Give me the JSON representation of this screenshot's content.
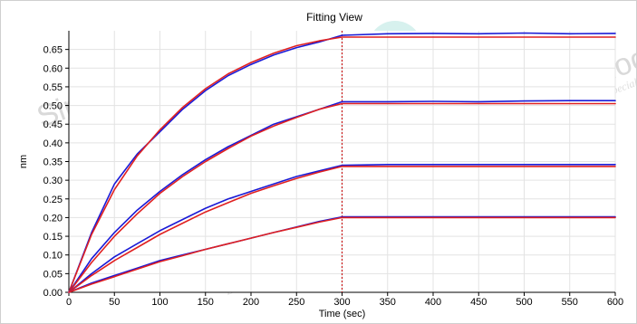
{
  "chart_data": {
    "type": "line",
    "title": "Fitting View",
    "xlabel": "Time (sec)",
    "ylabel": "nm",
    "xlim": [
      0,
      600
    ],
    "ylim": [
      0,
      0.7
    ],
    "x_ticks": [
      0,
      50,
      100,
      150,
      200,
      250,
      300,
      350,
      400,
      450,
      500,
      550,
      600
    ],
    "y_ticks": [
      0.0,
      0.05,
      0.1,
      0.15,
      0.2,
      0.25,
      0.3,
      0.35,
      0.4,
      0.45,
      0.5,
      0.55,
      0.6,
      0.65
    ],
    "grid": true,
    "vertical_marker_x": 300,
    "series": [
      {
        "color": "#1a1ad6",
        "x": [
          0,
          25,
          50,
          75,
          100,
          125,
          150,
          175,
          200,
          225,
          250,
          275,
          300,
          350,
          400,
          450,
          500,
          550,
          600
        ],
        "values": [
          0.0,
          0.16,
          0.29,
          0.37,
          0.43,
          0.49,
          0.54,
          0.58,
          0.61,
          0.635,
          0.655,
          0.67,
          0.688,
          0.692,
          0.693,
          0.692,
          0.694,
          0.692,
          0.693
        ]
      },
      {
        "color": "#e02020",
        "x": [
          0,
          25,
          50,
          75,
          100,
          125,
          150,
          175,
          200,
          225,
          250,
          275,
          300,
          350,
          400,
          450,
          500,
          550,
          600
        ],
        "values": [
          0.0,
          0.155,
          0.275,
          0.365,
          0.435,
          0.495,
          0.545,
          0.585,
          0.615,
          0.64,
          0.66,
          0.673,
          0.683,
          0.683,
          0.683,
          0.683,
          0.683,
          0.683,
          0.683
        ]
      },
      {
        "color": "#1a1ad6",
        "x": [
          0,
          25,
          50,
          75,
          100,
          125,
          150,
          175,
          200,
          225,
          250,
          275,
          300,
          350,
          400,
          450,
          500,
          550,
          600
        ],
        "values": [
          0.0,
          0.09,
          0.16,
          0.22,
          0.27,
          0.315,
          0.355,
          0.39,
          0.42,
          0.45,
          0.47,
          0.49,
          0.51,
          0.51,
          0.511,
          0.51,
          0.512,
          0.513,
          0.513
        ]
      },
      {
        "color": "#e02020",
        "x": [
          0,
          25,
          50,
          75,
          100,
          125,
          150,
          175,
          200,
          225,
          250,
          275,
          300,
          350,
          400,
          450,
          500,
          550,
          600
        ],
        "values": [
          0.0,
          0.08,
          0.15,
          0.21,
          0.265,
          0.31,
          0.35,
          0.385,
          0.418,
          0.445,
          0.468,
          0.49,
          0.505,
          0.505,
          0.505,
          0.505,
          0.505,
          0.505,
          0.505
        ]
      },
      {
        "color": "#1a1ad6",
        "x": [
          0,
          25,
          50,
          75,
          100,
          125,
          150,
          175,
          200,
          225,
          250,
          275,
          300,
          350,
          400,
          450,
          500,
          550,
          600
        ],
        "values": [
          0.0,
          0.05,
          0.095,
          0.13,
          0.165,
          0.195,
          0.225,
          0.25,
          0.27,
          0.29,
          0.31,
          0.325,
          0.34,
          0.342,
          0.342,
          0.342,
          0.342,
          0.342,
          0.342
        ]
      },
      {
        "color": "#e02020",
        "x": [
          0,
          25,
          50,
          75,
          100,
          125,
          150,
          175,
          200,
          225,
          250,
          275,
          300,
          350,
          400,
          450,
          500,
          550,
          600
        ],
        "values": [
          0.0,
          0.045,
          0.085,
          0.12,
          0.155,
          0.185,
          0.215,
          0.24,
          0.265,
          0.285,
          0.305,
          0.322,
          0.337,
          0.337,
          0.337,
          0.337,
          0.337,
          0.337,
          0.337
        ]
      },
      {
        "color": "#1a1ad6",
        "x": [
          0,
          25,
          50,
          75,
          100,
          125,
          150,
          175,
          200,
          225,
          250,
          275,
          300,
          350,
          400,
          450,
          500,
          550,
          600
        ],
        "values": [
          0.0,
          0.025,
          0.045,
          0.065,
          0.085,
          0.1,
          0.115,
          0.13,
          0.145,
          0.16,
          0.175,
          0.19,
          0.202,
          0.202,
          0.202,
          0.202,
          0.202,
          0.202,
          0.202
        ]
      },
      {
        "color": "#e02020",
        "x": [
          0,
          25,
          50,
          75,
          100,
          125,
          150,
          175,
          200,
          225,
          250,
          275,
          300,
          350,
          400,
          450,
          500,
          550,
          600
        ],
        "values": [
          0.0,
          0.022,
          0.042,
          0.062,
          0.082,
          0.098,
          0.115,
          0.13,
          0.145,
          0.16,
          0.174,
          0.188,
          0.2,
          0.2,
          0.2,
          0.2,
          0.2,
          0.2,
          0.2
        ]
      }
    ]
  },
  "watermarks": [
    "Sino Biological",
    "Biological Solution Specialist",
    "SB"
  ]
}
